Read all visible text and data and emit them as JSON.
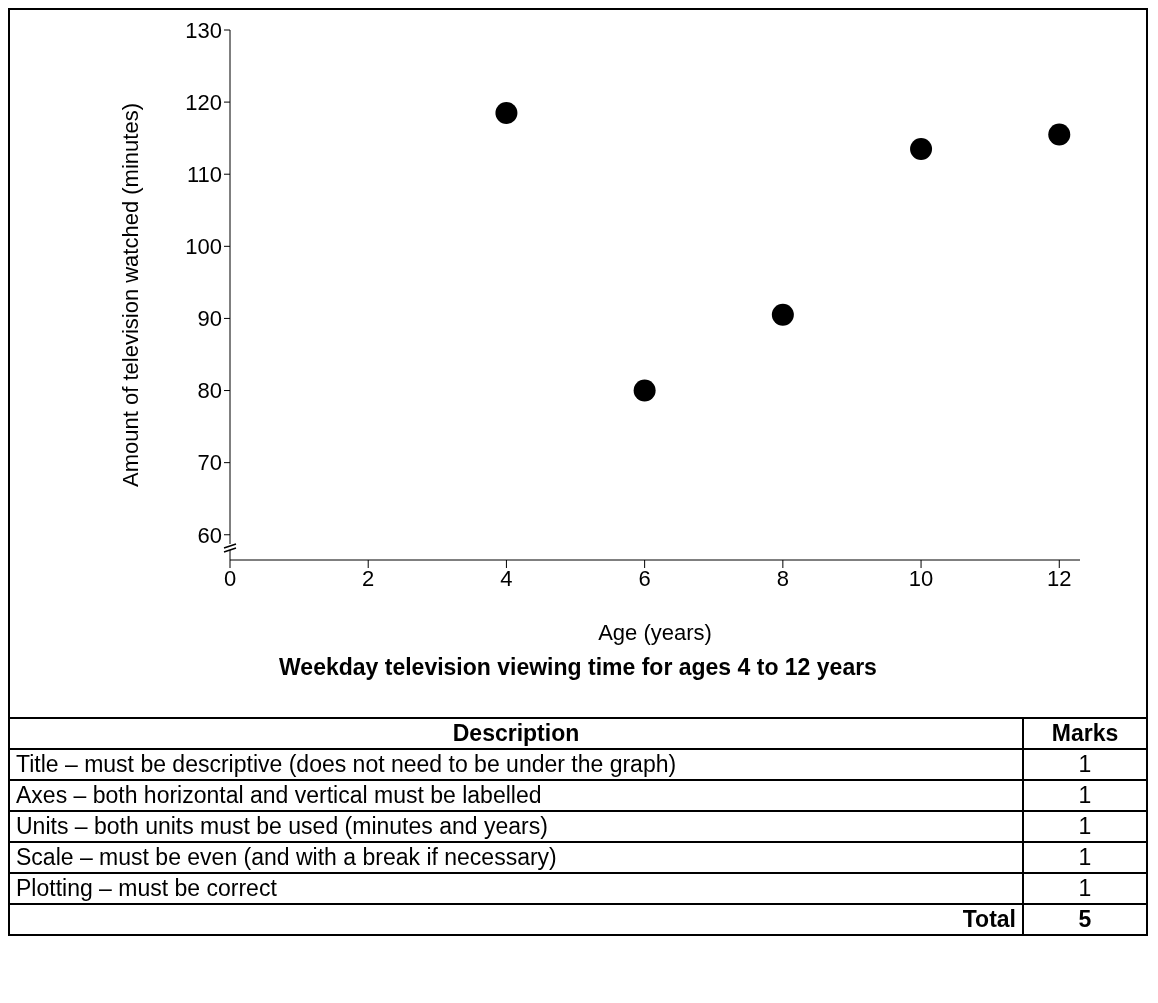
{
  "chart_data": {
    "type": "scatter",
    "title": "Weekday television viewing time for ages 4 to 12 years",
    "xlabel": "Age (years)",
    "ylabel": "Amount of television watched (minutes)",
    "x": [
      4,
      6,
      8,
      10,
      12
    ],
    "series": [
      {
        "color": "#000000",
        "values": [
          118.5,
          80,
          90.5,
          113.5,
          115.5
        ]
      }
    ],
    "xlim": [
      0,
      12.3
    ],
    "xticks": [
      0,
      2,
      4,
      6,
      8,
      10,
      12
    ],
    "ylim": [
      56.5,
      130
    ],
    "yticks": [
      60,
      70,
      80,
      90,
      100,
      110,
      120,
      130
    ],
    "marker": "circle",
    "grid": false,
    "legend": false,
    "annotations": [
      "Description",
      "Marks",
      "Title – must be descriptive (does not need to be under the graph)",
      "1",
      "Axes – both horizontal and vertical must be labelled",
      "1",
      "Units – both units must be used (minutes and years)",
      "1",
      "Scale – must be even (and with a break if necessary)",
      "1",
      "Plotting – must be correct",
      "1",
      "Total",
      "5"
    ]
  }
}
